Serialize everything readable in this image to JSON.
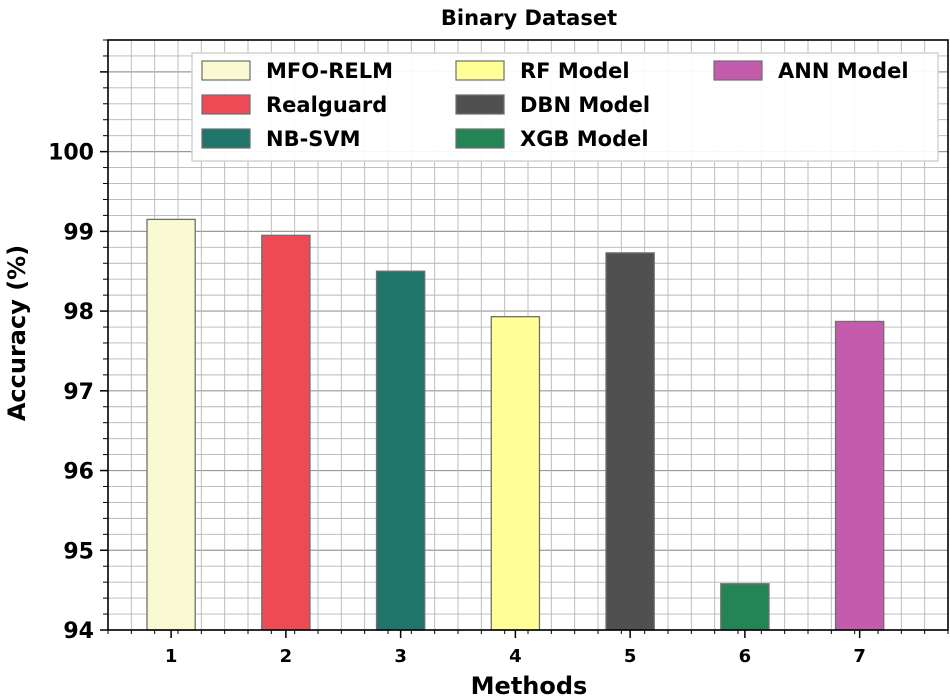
{
  "chart_data": {
    "type": "bar",
    "title": "Binary Dataset",
    "xlabel": "Methods",
    "ylabel": "Accuracy (%)",
    "ylim": [
      94,
      101.4
    ],
    "yticks": [
      94,
      95,
      96,
      97,
      98,
      99,
      100
    ],
    "grid": true,
    "legend_position": "top",
    "categories": [
      "1",
      "2",
      "3",
      "4",
      "5",
      "6",
      "7"
    ],
    "series": [
      {
        "name": "MFO-RELM",
        "category": "1",
        "value": 99.15,
        "color": "#fafad2"
      },
      {
        "name": "Realguard",
        "category": "2",
        "value": 98.95,
        "color": "#ed4a55"
      },
      {
        "name": "NB-SVM",
        "category": "3",
        "value": 98.5,
        "color": "#20756b"
      },
      {
        "name": "RF Model",
        "category": "4",
        "value": 97.93,
        "color": "#ffff96"
      },
      {
        "name": "DBN Model",
        "category": "5",
        "value": 98.73,
        "color": "#505050"
      },
      {
        "name": "XGB Model",
        "category": "6",
        "value": 94.58,
        "color": "#238555"
      },
      {
        "name": "ANN Model",
        "category": "7",
        "value": 97.87,
        "color": "#c55bad"
      }
    ]
  }
}
